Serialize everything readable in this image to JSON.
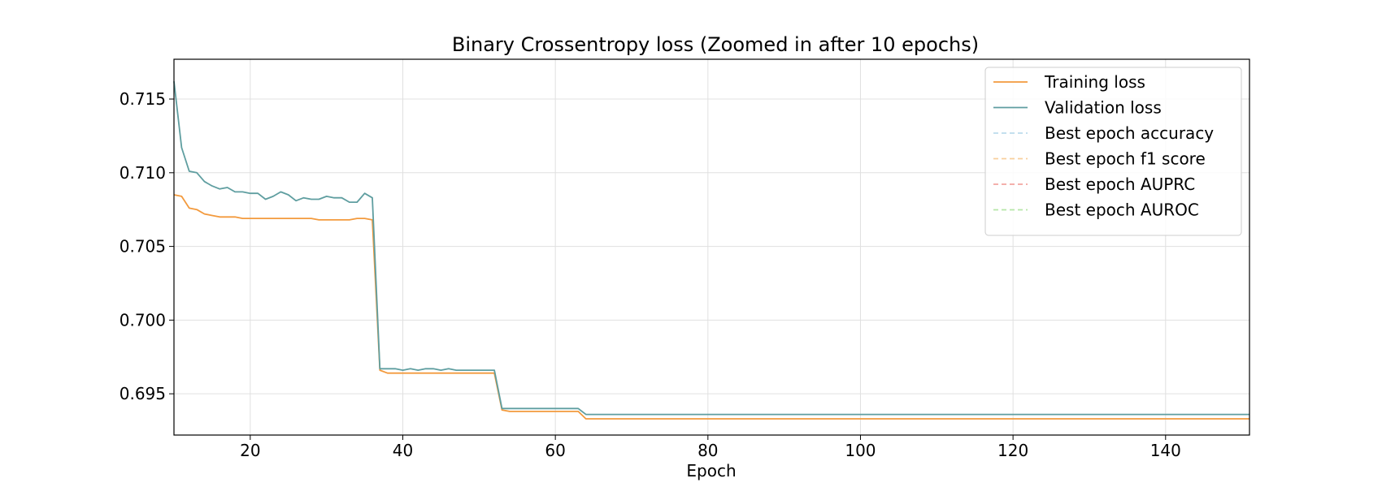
{
  "chart_data": {
    "type": "line",
    "title": "Binary Crossentropy loss (Zoomed in after 10 epochs)",
    "xlabel": "Epoch",
    "ylabel": "",
    "xlim": [
      10,
      151
    ],
    "ylim": [
      0.6922,
      0.7177
    ],
    "xticks": [
      20,
      40,
      60,
      80,
      100,
      120,
      140
    ],
    "yticks": [
      0.695,
      0.7,
      0.705,
      0.71,
      0.715
    ],
    "ytick_labels": [
      "0.695",
      "0.700",
      "0.705",
      "0.710",
      "0.715"
    ],
    "grid": true,
    "legend_position": "top-right",
    "series": [
      {
        "name": "Training loss",
        "color": "#f39a3d",
        "style": "solid",
        "points": [
          [
            10,
            0.7085
          ],
          [
            11,
            0.7084
          ],
          [
            12,
            0.7076
          ],
          [
            13,
            0.7075
          ],
          [
            14,
            0.7072
          ],
          [
            15,
            0.7071
          ],
          [
            16,
            0.707
          ],
          [
            17,
            0.707
          ],
          [
            18,
            0.707
          ],
          [
            19,
            0.7069
          ],
          [
            20,
            0.7069
          ],
          [
            21,
            0.7069
          ],
          [
            22,
            0.7069
          ],
          [
            23,
            0.7069
          ],
          [
            24,
            0.7069
          ],
          [
            25,
            0.7069
          ],
          [
            26,
            0.7069
          ],
          [
            27,
            0.7069
          ],
          [
            28,
            0.7069
          ],
          [
            29,
            0.7068
          ],
          [
            30,
            0.7068
          ],
          [
            31,
            0.7068
          ],
          [
            32,
            0.7068
          ],
          [
            33,
            0.7068
          ],
          [
            34,
            0.7069
          ],
          [
            35,
            0.7069
          ],
          [
            36,
            0.7068
          ],
          [
            37,
            0.6966
          ],
          [
            38,
            0.6964
          ],
          [
            39,
            0.6964
          ],
          [
            40,
            0.6964
          ],
          [
            41,
            0.6964
          ],
          [
            42,
            0.6964
          ],
          [
            43,
            0.6964
          ],
          [
            44,
            0.6964
          ],
          [
            45,
            0.6964
          ],
          [
            46,
            0.6964
          ],
          [
            47,
            0.6964
          ],
          [
            48,
            0.6964
          ],
          [
            49,
            0.6964
          ],
          [
            50,
            0.6964
          ],
          [
            51,
            0.6964
          ],
          [
            52,
            0.6964
          ],
          [
            53,
            0.6939
          ],
          [
            54,
            0.6938
          ],
          [
            55,
            0.6938
          ],
          [
            56,
            0.6938
          ],
          [
            57,
            0.6938
          ],
          [
            58,
            0.6938
          ],
          [
            59,
            0.6938
          ],
          [
            60,
            0.6938
          ],
          [
            61,
            0.6938
          ],
          [
            62,
            0.6938
          ],
          [
            63,
            0.6938
          ],
          [
            64,
            0.6933
          ],
          [
            70,
            0.6933
          ],
          [
            80,
            0.6933
          ],
          [
            90,
            0.6933
          ],
          [
            100,
            0.6933
          ],
          [
            110,
            0.6933
          ],
          [
            120,
            0.6933
          ],
          [
            130,
            0.6933
          ],
          [
            140,
            0.6933
          ],
          [
            151,
            0.6933
          ]
        ]
      },
      {
        "name": "Validation loss",
        "color": "#5f9ea0",
        "style": "solid",
        "points": [
          [
            10,
            0.7162
          ],
          [
            11,
            0.7117
          ],
          [
            12,
            0.7101
          ],
          [
            13,
            0.71
          ],
          [
            14,
            0.7094
          ],
          [
            15,
            0.7091
          ],
          [
            16,
            0.7089
          ],
          [
            17,
            0.709
          ],
          [
            18,
            0.7087
          ],
          [
            19,
            0.7087
          ],
          [
            20,
            0.7086
          ],
          [
            21,
            0.7086
          ],
          [
            22,
            0.7082
          ],
          [
            23,
            0.7084
          ],
          [
            24,
            0.7087
          ],
          [
            25,
            0.7085
          ],
          [
            26,
            0.7081
          ],
          [
            27,
            0.7083
          ],
          [
            28,
            0.7082
          ],
          [
            29,
            0.7082
          ],
          [
            30,
            0.7084
          ],
          [
            31,
            0.7083
          ],
          [
            32,
            0.7083
          ],
          [
            33,
            0.708
          ],
          [
            34,
            0.708
          ],
          [
            35,
            0.7086
          ],
          [
            36,
            0.7083
          ],
          [
            37,
            0.6967
          ],
          [
            38,
            0.6967
          ],
          [
            39,
            0.6967
          ],
          [
            40,
            0.6966
          ],
          [
            41,
            0.6967
          ],
          [
            42,
            0.6966
          ],
          [
            43,
            0.6967
          ],
          [
            44,
            0.6967
          ],
          [
            45,
            0.6966
          ],
          [
            46,
            0.6967
          ],
          [
            47,
            0.6966
          ],
          [
            48,
            0.6966
          ],
          [
            49,
            0.6966
          ],
          [
            50,
            0.6966
          ],
          [
            51,
            0.6966
          ],
          [
            52,
            0.6966
          ],
          [
            53,
            0.694
          ],
          [
            54,
            0.694
          ],
          [
            55,
            0.694
          ],
          [
            56,
            0.694
          ],
          [
            57,
            0.694
          ],
          [
            58,
            0.694
          ],
          [
            59,
            0.694
          ],
          [
            60,
            0.694
          ],
          [
            61,
            0.694
          ],
          [
            62,
            0.694
          ],
          [
            63,
            0.694
          ],
          [
            64,
            0.6936
          ],
          [
            70,
            0.6936
          ],
          [
            80,
            0.6936
          ],
          [
            90,
            0.6936
          ],
          [
            100,
            0.6936
          ],
          [
            110,
            0.6936
          ],
          [
            120,
            0.6936
          ],
          [
            130,
            0.6936
          ],
          [
            140,
            0.6936
          ],
          [
            151,
            0.6936
          ]
        ]
      },
      {
        "name": "Best epoch accuracy",
        "color": "#bcdcec",
        "style": "dashed",
        "points": []
      },
      {
        "name": "Best epoch f1 score",
        "color": "#f8cf9c",
        "style": "dashed",
        "points": []
      },
      {
        "name": "Best epoch AUPRC",
        "color": "#f3a5a0",
        "style": "dashed",
        "points": []
      },
      {
        "name": "Best epoch AUROC",
        "color": "#b5e6a8",
        "style": "dashed",
        "points": []
      }
    ]
  }
}
